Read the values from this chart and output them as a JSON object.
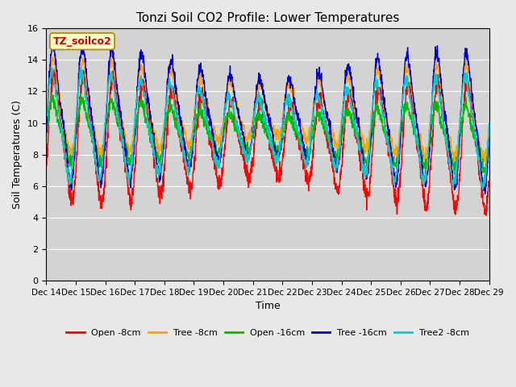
{
  "title": "Tonzi Soil CO2 Profile: Lower Temperatures",
  "xlabel": "Time",
  "ylabel": "Soil Temperatures (C)",
  "xlim": [
    0,
    15
  ],
  "ylim": [
    0,
    16
  ],
  "yticks": [
    0,
    2,
    4,
    6,
    8,
    10,
    12,
    14,
    16
  ],
  "xtick_labels": [
    "Dec 14",
    "Dec 15",
    "Dec 16",
    "Dec 17",
    "Dec 18",
    "Dec 19",
    "Dec 20",
    "Dec 21",
    "Dec 22",
    "Dec 23",
    "Dec 24",
    "Dec 25",
    "Dec 26",
    "Dec 27",
    "Dec 28",
    "Dec 29"
  ],
  "series_colors": {
    "open_8cm": "#ff0000",
    "tree_8cm": "#ffa500",
    "open_16cm": "#00bb00",
    "tree_16cm": "#0000cc",
    "tree2_8cm": "#00cccc"
  },
  "legend_labels": [
    "Open -8cm",
    "Tree -8cm",
    "Open -16cm",
    "Tree -16cm",
    "Tree2 -8cm"
  ],
  "watermark_text": "TZ_soilco2",
  "watermark_color": "#cc0000",
  "watermark_bg": "#ffffcc",
  "fig_facecolor": "#e8e8e8",
  "plot_facecolor": "#d3d3d3",
  "title_fontsize": 11,
  "axis_label_fontsize": 9,
  "tick_fontsize": 8
}
